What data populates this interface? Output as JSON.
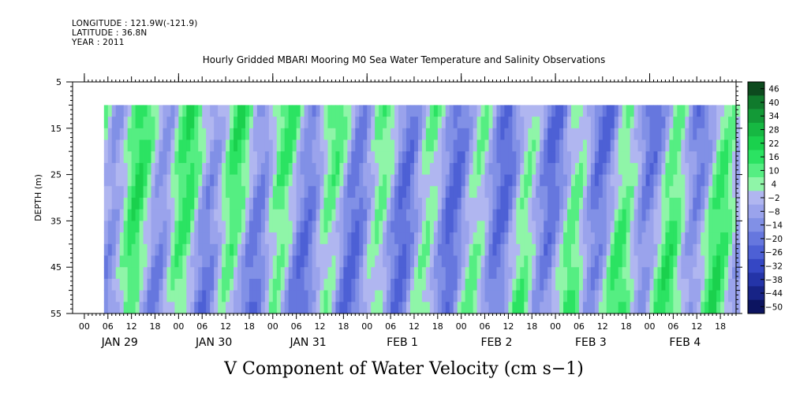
{
  "header": {
    "longitude": "LONGITUDE : 121.9W(-121.9)",
    "latitude": "LATITUDE : 36.8N",
    "year": "YEAR : 2011"
  },
  "chart_data": {
    "type": "heatmap",
    "title": "Hourly Gridded MBARI Mooring M0 Sea Water Temperature and Salinity Observations",
    "xlabel": "V Component of Water Velocity (cm s−1)",
    "ylabel": "DEPTH (m)",
    "ylim": [
      55,
      5
    ],
    "y_ticks": [
      5,
      15,
      25,
      35,
      45,
      55
    ],
    "x_hour_ticks": [
      "00",
      "06",
      "12",
      "18",
      "00",
      "06",
      "12",
      "18",
      "00",
      "06",
      "12",
      "18",
      "00",
      "06",
      "12",
      "18",
      "00",
      "06",
      "12",
      "18",
      "00",
      "06",
      "12",
      "18",
      "00",
      "06",
      "12",
      "18"
    ],
    "x_day_labels": [
      "JAN 29",
      "JAN 30",
      "JAN 31",
      "FEB  1",
      "FEB  2",
      "FEB  3",
      "FEB  4"
    ],
    "data_range_hours": [
      5,
      167
    ],
    "data_depth_range": [
      10,
      55
    ],
    "colorbar": {
      "labels": [
        "46",
        "40",
        "34",
        "28",
        "22",
        "16",
        "10",
        "4",
        "−2",
        "−8",
        "−14",
        "−20",
        "−26",
        "−32",
        "−38",
        "−44",
        "−50"
      ],
      "colors": [
        "#0d4a1e",
        "#107a2c",
        "#139a37",
        "#16b842",
        "#1ad14d",
        "#2be362",
        "#55ee82",
        "#8ff5a8",
        "#b0b6f0",
        "#9aa3ec",
        "#8190e6",
        "#6677de",
        "#4d60d5",
        "#3547c4",
        "#2434a8",
        "#172386",
        "#0c1460"
      ]
    },
    "grid": false,
    "notes": "Alternating bands of positive (green, ~4 to 22) and negative (blue, ~-2 to -26) velocity across depth with time"
  }
}
